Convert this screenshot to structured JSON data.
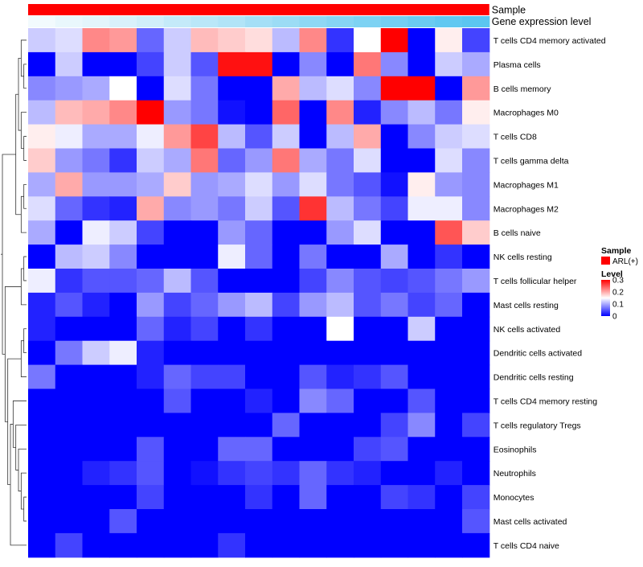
{
  "chart_data": {
    "type": "heatmap",
    "annotations": [
      {
        "label": "Sample",
        "color": "#ff0000"
      },
      {
        "label": "Gene expression level",
        "gradient": [
          "#f5fbfd",
          "#5bc6f0"
        ]
      }
    ],
    "rows": [
      "T cells CD4 memory activated",
      "Plasma cells",
      "B cells memory",
      "Macrophages M0",
      "T cells CD8",
      "T cells gamma delta",
      "Macrophages M1",
      "Macrophages M2",
      "B cells naive",
      "NK cells resting",
      "T cells follicular helper",
      "Mast cells resting",
      "NK cells activated",
      "Dendritic cells activated",
      "Dendritic cells resting",
      "T cells CD4 memory resting",
      "T cells regulatory  Tregs",
      "Eosinophils",
      "Neutrophils",
      "Monocytes",
      "Mast cells activated",
      "T cells CD4 naive"
    ],
    "values": [
      [
        0.12,
        0.13,
        0.22,
        0.21,
        0.06,
        0.12,
        0.19,
        0.18,
        0.17,
        0.11,
        0.22,
        0.03,
        0.15,
        0.3,
        0.0,
        0.16,
        0.04
      ],
      [
        0.0,
        0.12,
        0.0,
        0.0,
        0.04,
        0.12,
        0.05,
        0.29,
        0.29,
        0.0,
        0.08,
        0.0,
        0.23,
        0.08,
        0.0,
        0.12,
        0.1
      ],
      [
        0.08,
        0.09,
        0.1,
        0.15,
        0.0,
        0.13,
        0.07,
        0.0,
        0.0,
        0.2,
        0.11,
        0.13,
        0.08,
        0.3,
        0.3,
        0.0,
        0.21
      ],
      [
        0.11,
        0.19,
        0.2,
        0.22,
        0.3,
        0.09,
        0.07,
        0.01,
        0.0,
        0.24,
        0.0,
        0.22,
        0.02,
        0.08,
        0.11,
        0.07,
        0.16
      ],
      [
        0.16,
        0.14,
        0.1,
        0.1,
        0.14,
        0.21,
        0.26,
        0.11,
        0.05,
        0.12,
        0.0,
        0.11,
        0.2,
        0.0,
        0.08,
        0.12,
        0.13
      ],
      [
        0.18,
        0.09,
        0.07,
        0.03,
        0.12,
        0.1,
        0.23,
        0.06,
        0.09,
        0.23,
        0.1,
        0.07,
        0.13,
        0.0,
        0.0,
        0.13,
        0.08
      ],
      [
        0.1,
        0.2,
        0.09,
        0.09,
        0.1,
        0.18,
        0.09,
        0.1,
        0.13,
        0.09,
        0.13,
        0.07,
        0.05,
        0.01,
        0.16,
        0.09,
        0.08
      ],
      [
        0.13,
        0.06,
        0.03,
        0.02,
        0.2,
        0.08,
        0.09,
        0.07,
        0.12,
        0.05,
        0.27,
        0.11,
        0.07,
        0.04,
        0.14,
        0.14,
        0.08
      ],
      [
        0.1,
        0.0,
        0.14,
        0.12,
        0.04,
        0.0,
        0.0,
        0.09,
        0.06,
        0.0,
        0.0,
        0.09,
        0.13,
        0.0,
        0.0,
        0.25,
        0.18
      ],
      [
        0.0,
        0.11,
        0.12,
        0.08,
        0.0,
        0.0,
        0.0,
        0.14,
        0.06,
        0.0,
        0.07,
        0.0,
        0.0,
        0.1,
        0.0,
        0.03,
        0.0
      ],
      [
        0.14,
        0.03,
        0.05,
        0.05,
        0.06,
        0.11,
        0.05,
        0.0,
        0.0,
        0.0,
        0.04,
        0.08,
        0.05,
        0.04,
        0.05,
        0.07,
        0.09
      ],
      [
        0.02,
        0.05,
        0.02,
        0.0,
        0.09,
        0.04,
        0.06,
        0.09,
        0.11,
        0.04,
        0.09,
        0.11,
        0.05,
        0.07,
        0.04,
        0.06,
        0.0
      ],
      [
        0.02,
        0.0,
        0.0,
        0.0,
        0.06,
        0.02,
        0.04,
        0.0,
        0.03,
        0.0,
        0.0,
        0.15,
        0.0,
        0.0,
        0.12,
        0.0,
        0.0
      ],
      [
        0.0,
        0.07,
        0.12,
        0.14,
        0.02,
        0.0,
        0.0,
        0.0,
        0.0,
        0.0,
        0.0,
        0.0,
        0.0,
        0.0,
        0.0,
        0.0,
        0.0
      ],
      [
        0.07,
        0.0,
        0.0,
        0.0,
        0.02,
        0.06,
        0.04,
        0.04,
        0.0,
        0.0,
        0.05,
        0.02,
        0.03,
        0.05,
        0.0,
        0.0,
        0.0
      ],
      [
        0.0,
        0.0,
        0.0,
        0.0,
        0.0,
        0.05,
        0.0,
        0.0,
        0.02,
        0.0,
        0.08,
        0.06,
        0.0,
        0.0,
        0.05,
        0.0,
        0.0
      ],
      [
        0.0,
        0.0,
        0.0,
        0.0,
        0.0,
        0.0,
        0.0,
        0.0,
        0.0,
        0.06,
        0.0,
        0.0,
        0.0,
        0.04,
        0.08,
        0.0,
        0.04
      ],
      [
        0.0,
        0.0,
        0.0,
        0.0,
        0.05,
        0.0,
        0.0,
        0.06,
        0.06,
        0.0,
        0.0,
        0.0,
        0.04,
        0.05,
        0.0,
        0.0,
        0.0
      ],
      [
        0.0,
        0.0,
        0.02,
        0.03,
        0.05,
        0.0,
        0.01,
        0.03,
        0.04,
        0.03,
        0.06,
        0.03,
        0.02,
        0.0,
        0.0,
        0.02,
        0.0
      ],
      [
        0.0,
        0.0,
        0.0,
        0.0,
        0.04,
        0.0,
        0.0,
        0.0,
        0.03,
        0.0,
        0.06,
        0.0,
        0.0,
        0.04,
        0.03,
        0.0,
        0.04
      ],
      [
        0.0,
        0.0,
        0.0,
        0.05,
        0.0,
        0.0,
        0.0,
        0.0,
        0.0,
        0.0,
        0.0,
        0.0,
        0.0,
        0.0,
        0.0,
        0.0,
        0.05
      ],
      [
        0.0,
        0.04,
        0.0,
        0.0,
        0.0,
        0.0,
        0.0,
        0.03,
        0.0,
        0.0,
        0.0,
        0.0,
        0.0,
        0.0,
        0.0,
        0.0,
        0.0
      ]
    ],
    "gene_expression_level": [
      0.02,
      0.08,
      0.12,
      0.18,
      0.24,
      0.32,
      0.38,
      0.44,
      0.52,
      0.58,
      0.66,
      0.72,
      0.78,
      0.84,
      0.9,
      0.96,
      1.0
    ],
    "legend": {
      "sample_title": "Sample",
      "sample_label": "ARL(+)",
      "sample_color": "#ff0000",
      "level_title": "Level",
      "level_ticks": [
        "0.3",
        "0.2",
        "0.1",
        "0"
      ],
      "level_range": [
        0,
        0.3
      ],
      "colors": {
        "low": "#0000ff",
        "mid": "#ffffff",
        "high": "#ff0000"
      },
      "placement": "right"
    },
    "dendrogram": "left"
  }
}
